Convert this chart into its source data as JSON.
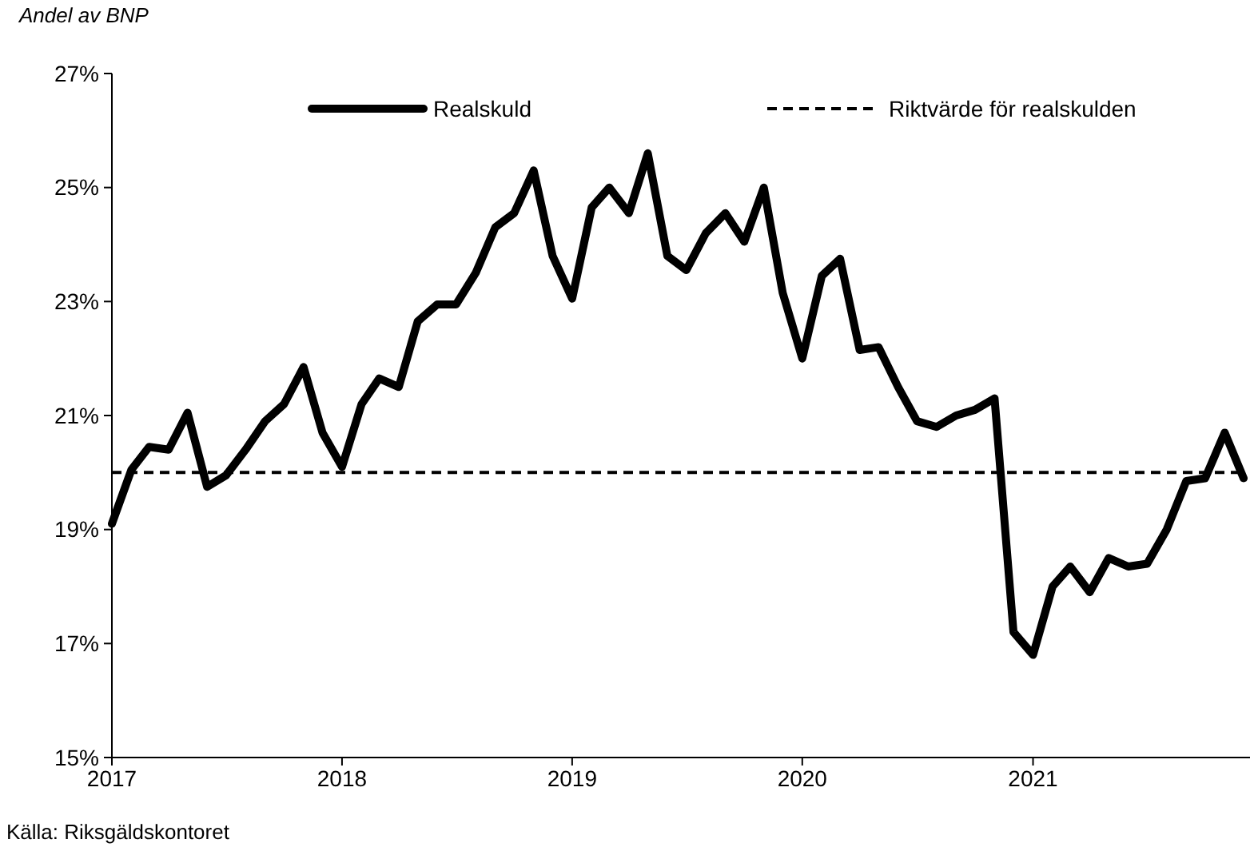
{
  "chart_data": {
    "type": "line",
    "ylabel": "Andel av BNP",
    "x": [
      "2017-01",
      "2017-02",
      "2017-03",
      "2017-04",
      "2017-05",
      "2017-06",
      "2017-07",
      "2017-08",
      "2017-09",
      "2017-10",
      "2017-11",
      "2017-12",
      "2018-01",
      "2018-02",
      "2018-03",
      "2018-04",
      "2018-05",
      "2018-06",
      "2018-07",
      "2018-08",
      "2018-09",
      "2018-10",
      "2018-11",
      "2018-12",
      "2019-01",
      "2019-02",
      "2019-03",
      "2019-04",
      "2019-05",
      "2019-06",
      "2019-07",
      "2019-08",
      "2019-09",
      "2019-10",
      "2019-11",
      "2019-12",
      "2020-01",
      "2020-02",
      "2020-03",
      "2020-04",
      "2020-05",
      "2020-06",
      "2020-07",
      "2020-08",
      "2020-09",
      "2020-10",
      "2020-11",
      "2020-12",
      "2021-01",
      "2021-02",
      "2021-03",
      "2021-04",
      "2021-05",
      "2021-06",
      "2021-07",
      "2021-08",
      "2021-09",
      "2021-10",
      "2021-11",
      "2021-12"
    ],
    "series": [
      {
        "name": "Realskuld",
        "color": "#000000",
        "values": [
          19.1,
          20.05,
          20.45,
          20.4,
          21.05,
          19.75,
          19.95,
          20.4,
          20.9,
          21.2,
          21.85,
          20.7,
          20.1,
          21.2,
          21.65,
          21.5,
          22.65,
          22.95,
          22.95,
          23.5,
          24.3,
          24.55,
          25.3,
          23.8,
          23.05,
          24.65,
          25.0,
          24.55,
          25.6,
          23.8,
          23.55,
          24.2,
          24.55,
          24.05,
          25.0,
          23.15,
          22.0,
          23.45,
          23.75,
          22.15,
          22.2,
          21.5,
          20.9,
          20.8,
          21.0,
          21.1,
          21.3,
          17.2,
          16.8,
          18.0,
          18.35,
          17.9,
          18.5,
          18.35,
          18.4,
          19.0,
          19.85,
          19.9,
          20.7,
          19.9
        ]
      }
    ],
    "ref_lines": [
      {
        "axis": "y",
        "value": 20,
        "label": "Riktvärde för realskulden",
        "color": "#000000",
        "line_style": "dashed"
      }
    ],
    "xlim": [
      "2017-01",
      "2021-12"
    ],
    "xticks": [
      "2017",
      "2018",
      "2019",
      "2020",
      "2021"
    ],
    "ylim": [
      15,
      27
    ],
    "yticks": [
      {
        "value": 15,
        "label": "15%"
      },
      {
        "value": 17,
        "label": "17%"
      },
      {
        "value": 19,
        "label": "19%"
      },
      {
        "value": 21,
        "label": "21%"
      },
      {
        "value": 23,
        "label": "23%"
      },
      {
        "value": 25,
        "label": "25%"
      },
      {
        "value": 27,
        "label": "27%"
      }
    ],
    "grid": false,
    "legend": "top",
    "line_style": "solid",
    "marker": "none",
    "annotations": [
      "Källa: Riksgäldskontoret"
    ]
  }
}
